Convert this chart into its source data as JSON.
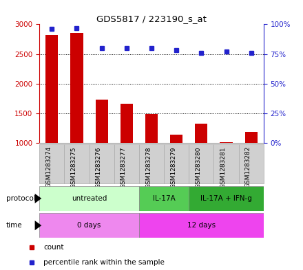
{
  "title": "GDS5817 / 223190_s_at",
  "samples": [
    "GSM1283274",
    "GSM1283275",
    "GSM1283276",
    "GSM1283277",
    "GSM1283278",
    "GSM1283279",
    "GSM1283280",
    "GSM1283281",
    "GSM1283282"
  ],
  "counts": [
    2820,
    2850,
    1730,
    1660,
    1490,
    1140,
    1330,
    1020,
    1190
  ],
  "percentile_ranks": [
    96,
    97,
    80,
    80,
    80,
    78,
    76,
    77,
    76
  ],
  "ylim_left": [
    1000,
    3000
  ],
  "ylim_right": [
    0,
    100
  ],
  "yticks_left": [
    1000,
    1500,
    2000,
    2500,
    3000
  ],
  "yticks_right": [
    0,
    25,
    50,
    75,
    100
  ],
  "bar_color": "#cc0000",
  "dot_color": "#2222cc",
  "protocol_groups": [
    {
      "label": "untreated",
      "start": 0,
      "end": 4,
      "color": "#ccffcc"
    },
    {
      "label": "IL-17A",
      "start": 4,
      "end": 6,
      "color": "#55cc55"
    },
    {
      "label": "IL-17A + IFN-g",
      "start": 6,
      "end": 9,
      "color": "#33aa33"
    }
  ],
  "time_groups": [
    {
      "label": "0 days",
      "start": 0,
      "end": 4,
      "color": "#ee88ee"
    },
    {
      "label": "12 days",
      "start": 4,
      "end": 9,
      "color": "#ee44ee"
    }
  ],
  "left_axis_color": "#cc0000",
  "right_axis_color": "#2222cc",
  "grid_color": "#000000",
  "plot_bg_color": "#ffffff",
  "sample_cell_color": "#d0d0d0",
  "legend_count_color": "#cc0000",
  "legend_pct_color": "#2222cc"
}
